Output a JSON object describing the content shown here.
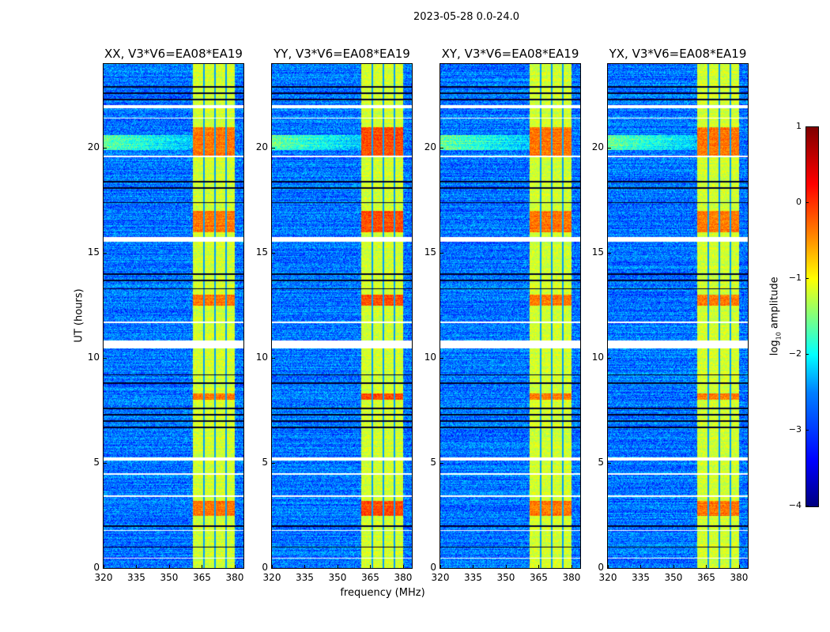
{
  "chart_data": {
    "type": "heatmap",
    "title": "2023-05-28 0.0-24.0",
    "xlabel": "frequency (MHz)",
    "ylabel": "UT (hours)",
    "xlim": [
      320,
      384
    ],
    "ylim": [
      0,
      24
    ],
    "xticks": [
      "320",
      "335",
      "350",
      "365",
      "380"
    ],
    "xtick_values": [
      320,
      335,
      350,
      365,
      380
    ],
    "yticks": [
      "0",
      "5",
      "10",
      "15",
      "20"
    ],
    "ytick_values": [
      0,
      5,
      10,
      15,
      20
    ],
    "panels": [
      {
        "title": "XX, V3*V6=EA08*EA19"
      },
      {
        "title": "YY, V3*V6=EA08*EA19"
      },
      {
        "title": "XY, V3*V6=EA08*EA19"
      },
      {
        "title": "YX, V3*V6=EA08*EA19"
      }
    ],
    "colorbar": {
      "label_prefix": "log",
      "label_sub": "10",
      "label_suffix": " amplitude",
      "range": [
        -4,
        1
      ],
      "ticks": [
        "1",
        "0",
        "−1",
        "−2",
        "−3",
        "−4"
      ],
      "tick_values": [
        1,
        0,
        -1,
        -2,
        -3,
        -4
      ],
      "colormap": "jet"
    },
    "background_level": -2.8,
    "band": {
      "start_mhz": 361,
      "end_mhz": 380,
      "level": -1.1,
      "channel_gaps_mhz": [
        366,
        371,
        376
      ]
    },
    "flagged_hours": [
      [
        21.9,
        22.05
      ],
      [
        21.4,
        21.45
      ],
      [
        19.55,
        19.65
      ],
      [
        15.55,
        15.75
      ],
      [
        11.65,
        11.75
      ],
      [
        10.45,
        10.85
      ],
      [
        5.1,
        5.25
      ],
      [
        4.45,
        4.5
      ],
      [
        3.4,
        3.45
      ],
      [
        1.75,
        1.8
      ],
      [
        0.45,
        0.5
      ]
    ],
    "dark_hours": [
      22.9,
      22.6,
      22.3,
      18.4,
      18.1,
      17.4,
      14.0,
      13.7,
      13.3,
      9.2,
      8.8,
      7.6,
      7.3,
      7.0,
      6.7,
      2.0,
      1.0
    ],
    "hot_hours": [
      [
        19.6,
        21.0
      ],
      [
        16.0,
        17.0
      ],
      [
        12.5,
        13.0
      ],
      [
        2.5,
        3.2
      ],
      [
        8.0,
        8.3
      ]
    ]
  }
}
